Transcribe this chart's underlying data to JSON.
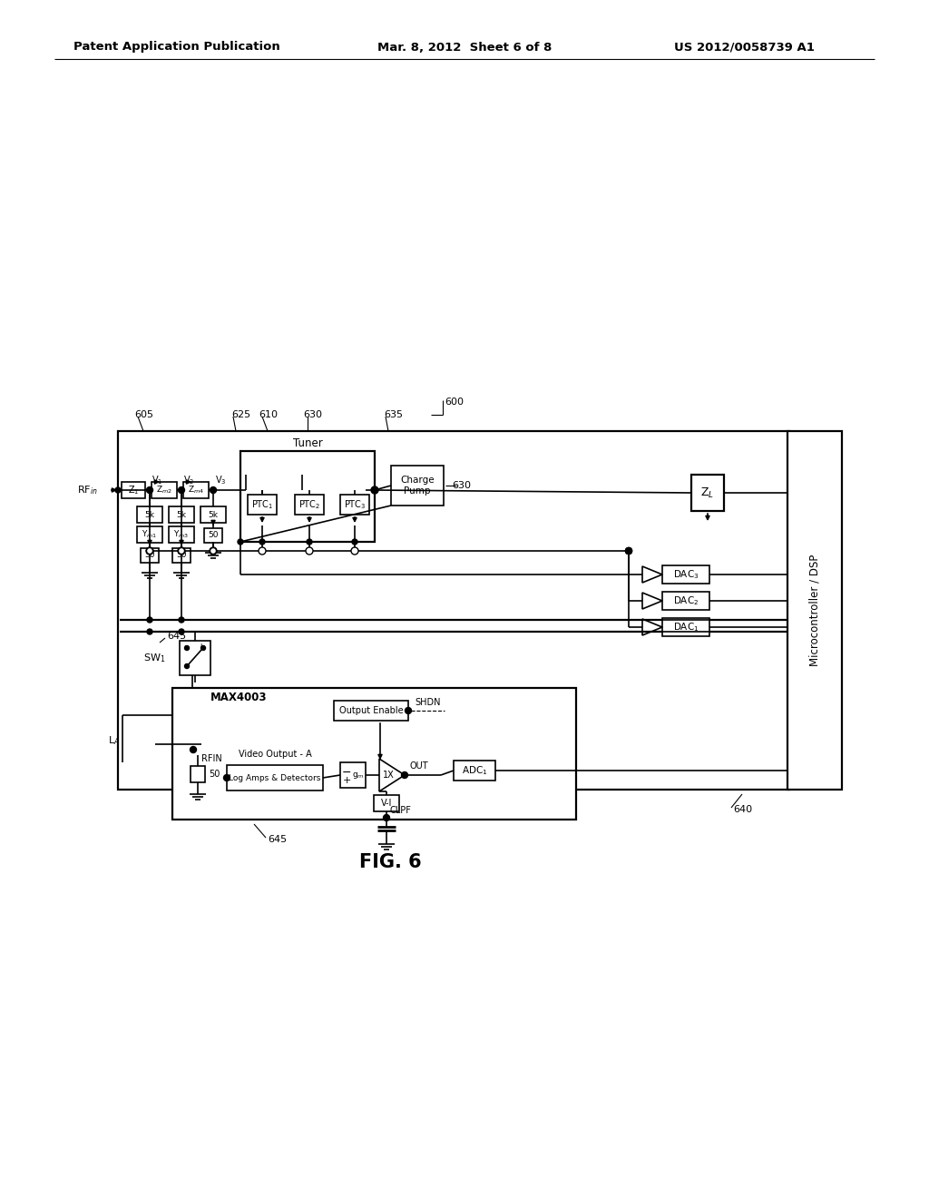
{
  "bg_color": "#ffffff",
  "header_left": "Patent Application Publication",
  "header_mid": "Mar. 8, 2012  Sheet 6 of 8",
  "header_right": "US 2012/0058739 A1",
  "fig_label": "FIG. 6",
  "label_600": "600",
  "label_605": "605",
  "label_610": "610",
  "label_625": "625",
  "label_630a": "630",
  "label_630b": "630",
  "label_635": "635",
  "label_640": "640",
  "label_645a": "645",
  "label_645b": "645"
}
